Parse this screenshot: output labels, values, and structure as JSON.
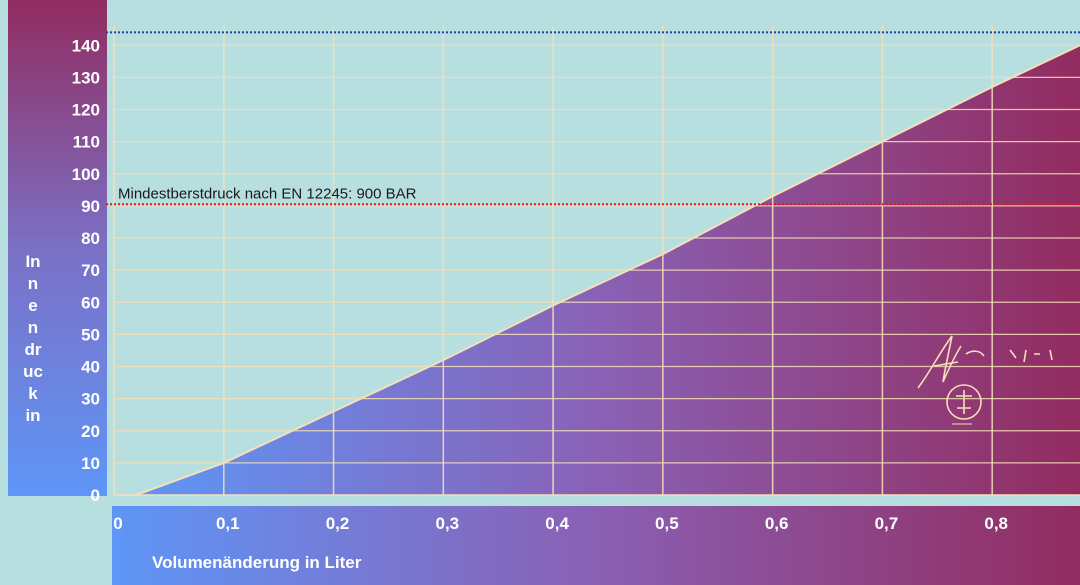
{
  "chart_data": {
    "type": "line",
    "xlabel": "Volumenänderung in Liter",
    "ylabel": "Innendruck in",
    "ylabel_lines": [
      "In",
      "n",
      "e",
      "n",
      "dr",
      "uc",
      "k",
      "in"
    ],
    "xlim": [
      0,
      0.88
    ],
    "ylim": [
      0,
      146
    ],
    "x_ticks": [
      {
        "value": 0,
        "label": "0"
      },
      {
        "value": 0.1,
        "label": "0,1"
      },
      {
        "value": 0.2,
        "label": "0,2"
      },
      {
        "value": 0.3,
        "label": "0,3"
      },
      {
        "value": 0.4,
        "label": "0,4"
      },
      {
        "value": 0.5,
        "label": "0,5"
      },
      {
        "value": 0.6,
        "label": "0,6"
      },
      {
        "value": 0.7,
        "label": "0,7"
      },
      {
        "value": 0.8,
        "label": "0,8"
      }
    ],
    "y_ticks": [
      {
        "value": 0,
        "label": "0"
      },
      {
        "value": 10,
        "label": "10"
      },
      {
        "value": 20,
        "label": "20"
      },
      {
        "value": 30,
        "label": "30"
      },
      {
        "value": 40,
        "label": "40"
      },
      {
        "value": 50,
        "label": "50"
      },
      {
        "value": 60,
        "label": "60"
      },
      {
        "value": 70,
        "label": "70"
      },
      {
        "value": 80,
        "label": "80"
      },
      {
        "value": 90,
        "label": "90"
      },
      {
        "value": 100,
        "label": "100"
      },
      {
        "value": 110,
        "label": "110"
      },
      {
        "value": 120,
        "label": "120"
      },
      {
        "value": 130,
        "label": "130"
      },
      {
        "value": 140,
        "label": "140"
      }
    ],
    "series": [
      {
        "x": [
          0.02,
          0.1,
          0.2,
          0.3,
          0.4,
          0.5,
          0.6,
          0.7,
          0.8,
          0.88
        ],
        "y": [
          0,
          10,
          26,
          42,
          59,
          75,
          93,
          110,
          127,
          140
        ]
      }
    ],
    "annotations": [
      {
        "y": 90.5,
        "label": "Mindestberstdruck nach EN 12245: 900 BAR",
        "color": "#e01a1a"
      },
      {
        "y": 144,
        "label": "",
        "color": "#2a3f9e"
      }
    ],
    "grid": true
  },
  "colors": {
    "background": "#b8dfe0",
    "grad_start": "#5e96f7",
    "grad_end": "#922c60",
    "grid": "#f5dfb8",
    "curve": "#f5dfb8"
  }
}
